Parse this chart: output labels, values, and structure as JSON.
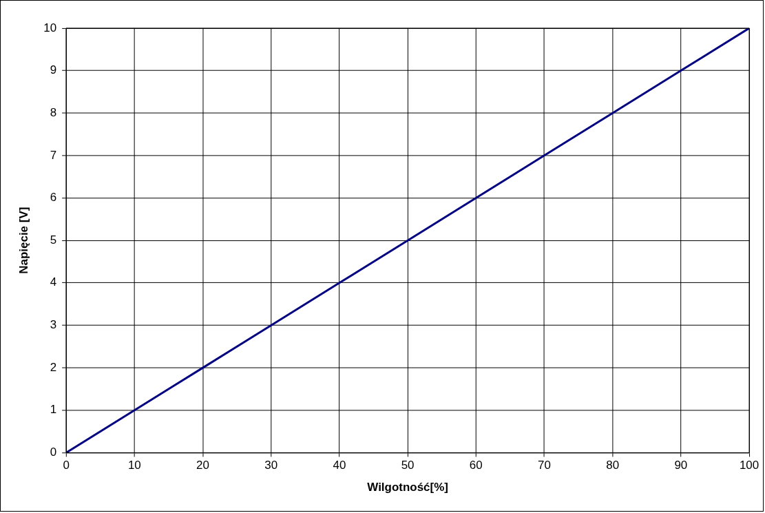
{
  "chart_data": {
    "type": "line",
    "xlabel": "Wilgotność[%]",
    "ylabel": "Napięcie [V]",
    "x": [
      0,
      10,
      20,
      30,
      40,
      50,
      60,
      70,
      80,
      90,
      100
    ],
    "series": [
      {
        "color": "#000080",
        "values": [
          0,
          1,
          2,
          3,
          4,
          5,
          6,
          7,
          8,
          9,
          10
        ]
      }
    ],
    "xlim": [
      0,
      100
    ],
    "xticks": [
      0,
      10,
      20,
      30,
      40,
      50,
      60,
      70,
      80,
      90,
      100
    ],
    "ylim": [
      0,
      10
    ],
    "yticks": [
      0,
      1,
      2,
      3,
      4,
      5,
      6,
      7,
      8,
      9,
      10
    ],
    "grid": true,
    "legend": false,
    "marker": "none",
    "line_style": "solid"
  }
}
